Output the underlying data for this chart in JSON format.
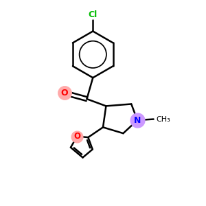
{
  "background_color": "#ffffff",
  "atom_color_O": "#ff0000",
  "atom_color_N": "#0000ff",
  "atom_color_Cl": "#00bb00",
  "bond_color": "#000000",
  "bond_lw": 1.8,
  "highlight_O_color": "#ffaaaa",
  "highlight_N_color": "#cc99ff",
  "highlight_O_size": 14,
  "highlight_N_size": 15,
  "methyl_label": "CH₃",
  "N_label": "N",
  "O_label": "O",
  "Cl_label": "Cl"
}
